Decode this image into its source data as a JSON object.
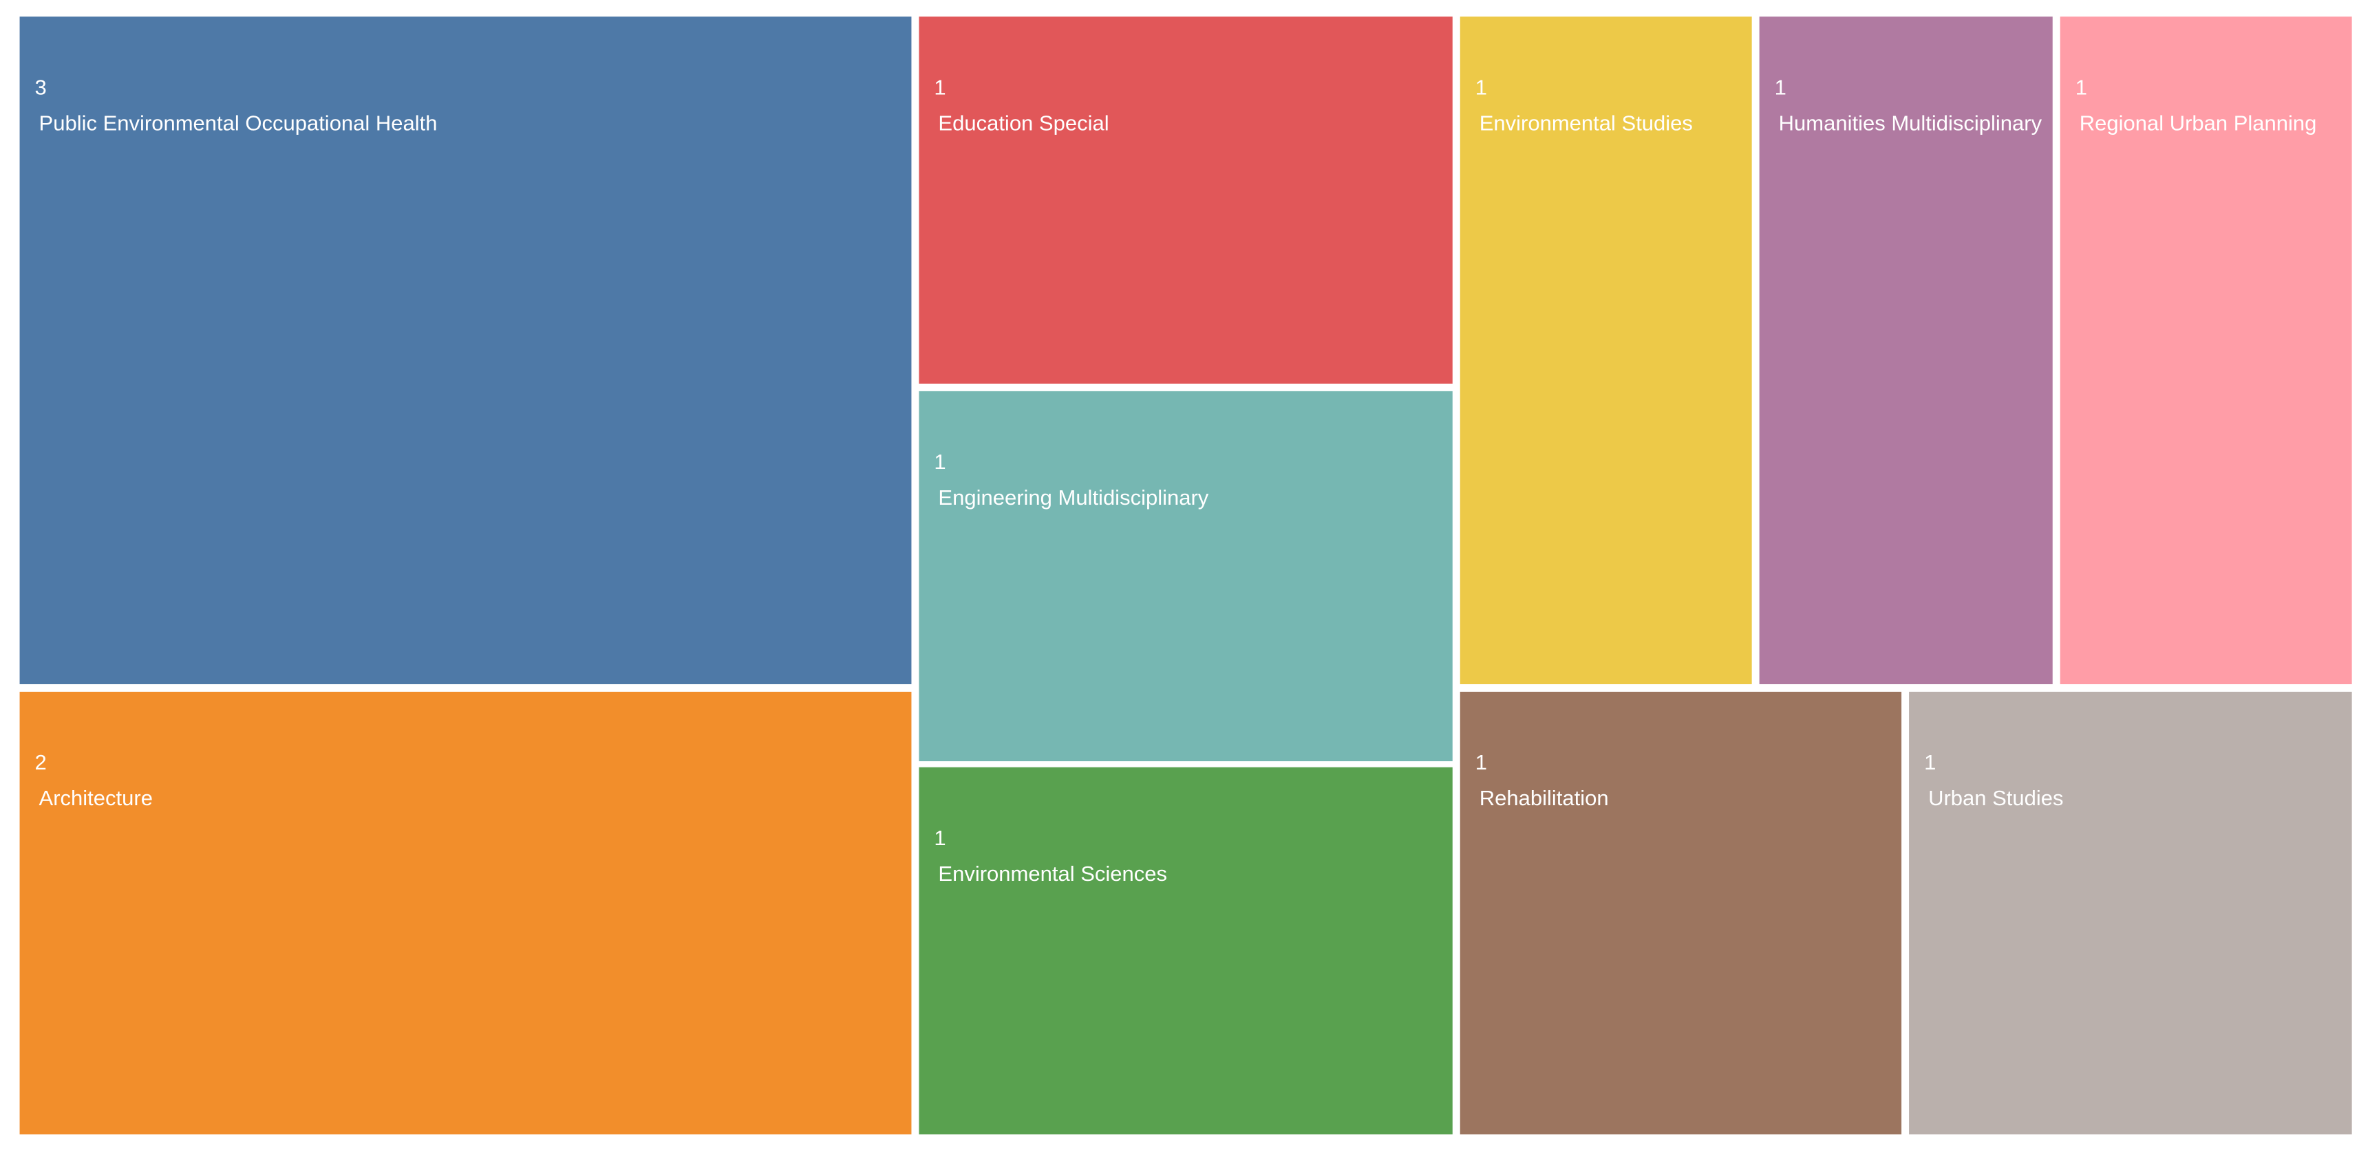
{
  "chart_data": {
    "type": "treemap",
    "categories": [
      "Public Environmental Occupational Health",
      "Architecture",
      "Education Special",
      "Engineering Multidisciplinary",
      "Environmental Sciences",
      "Environmental Studies",
      "Humanities Multidisciplinary",
      "Regional Urban Planning",
      "Rehabilitation",
      "Urban Studies"
    ],
    "values": [
      3,
      2,
      1,
      1,
      1,
      1,
      1,
      1,
      1,
      1
    ],
    "colors": [
      "#4e79a7",
      "#f28e2b",
      "#e15759",
      "#76b7b2",
      "#59a14f",
      "#edc948",
      "#b07aa1",
      "#ff9da7",
      "#9c755f",
      "#bab0ac"
    ]
  }
}
